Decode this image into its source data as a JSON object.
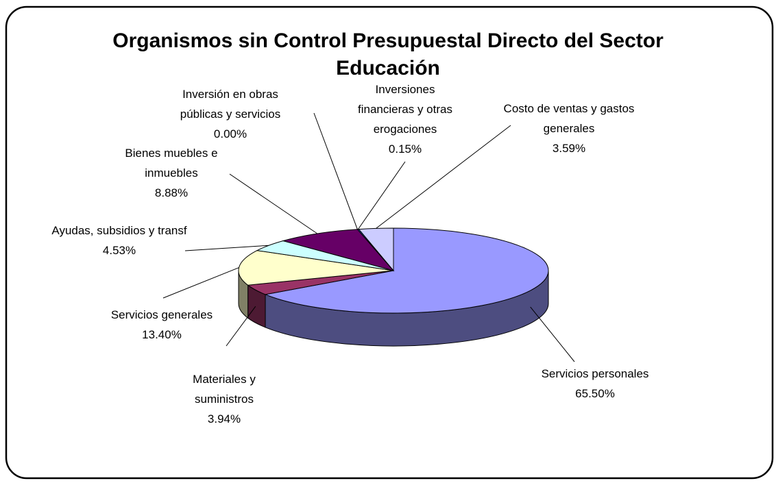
{
  "chart_data": {
    "type": "pie",
    "title": "Organismos sin Control Presupuestal Directo del Sector Educación",
    "categories": [
      "Servicios personales",
      "Materiales y suministros",
      "Servicios generales",
      "Ayudas, subsidios y transf",
      "Bienes muebles e inmuebles",
      "Inversión en obras públicas y servicios",
      "Inversiones financieras y otras erogaciones",
      "Costo de ventas y gastos generales"
    ],
    "values": [
      65.5,
      3.94,
      13.4,
      4.53,
      8.88,
      0.0,
      0.15,
      3.59
    ],
    "value_labels": [
      "65.50%",
      "3.94%",
      "13.40%",
      "4.53%",
      "8.88%",
      "0.00%",
      "0.15%",
      "3.59%"
    ],
    "colors": [
      "#9999ff",
      "#993366",
      "#ffffcc",
      "#ccffff",
      "#660066",
      "#ff8080",
      "#0066cc",
      "#ccccff"
    ]
  }
}
